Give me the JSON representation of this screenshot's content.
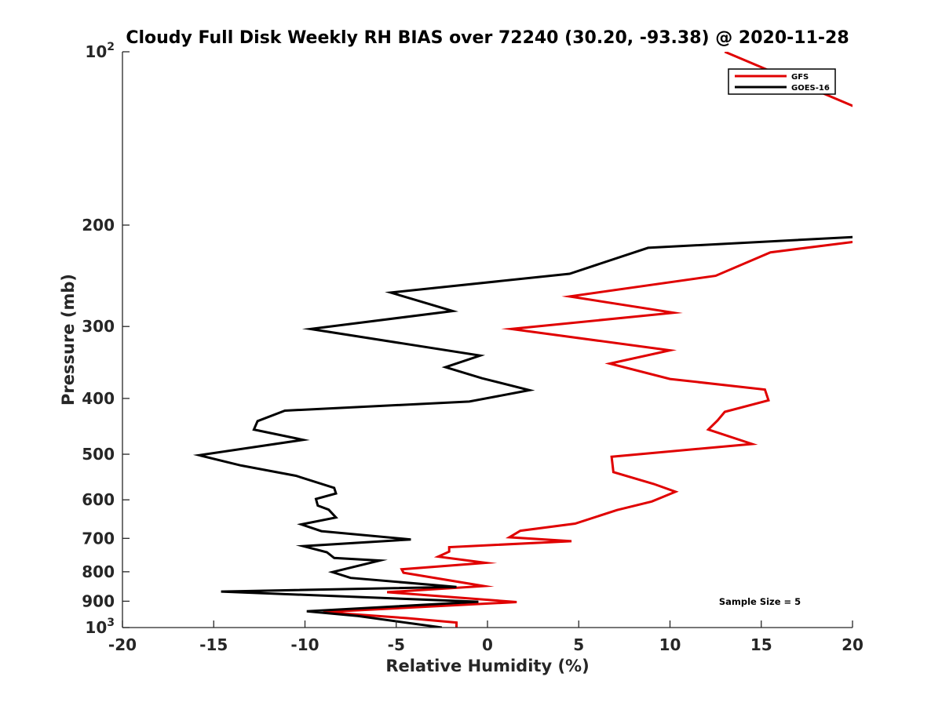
{
  "chart_data": {
    "type": "line",
    "title": "Cloudy Full Disk Weekly RH BIAS over 72240 (30.20, -93.38) @ 2020-11-28",
    "xlabel": "Relative Humidity (%)",
    "ylabel": "Pressure (mb)",
    "xlim": [
      -20,
      20
    ],
    "ylim": [
      100,
      1000
    ],
    "yscale": "log",
    "y_reversed": true,
    "xticks": [
      "-20",
      "-15",
      "-10",
      "-5",
      "0",
      "5",
      "10",
      "15",
      "20"
    ],
    "yticks": [
      {
        "value": 100,
        "base": "10",
        "exp": "2"
      },
      {
        "value": 200,
        "label": "200"
      },
      {
        "value": 300,
        "label": "300"
      },
      {
        "value": 400,
        "label": "400"
      },
      {
        "value": 500,
        "label": "500"
      },
      {
        "value": 600,
        "label": "600"
      },
      {
        "value": 700,
        "label": "700"
      },
      {
        "value": 800,
        "label": "800"
      },
      {
        "value": 900,
        "label": "900"
      },
      {
        "value": 1000,
        "base": "10",
        "exp": "3"
      }
    ],
    "legend": {
      "position": "top-right"
    },
    "annotation": "Sample Size = 5",
    "series": [
      {
        "name": "GFS",
        "color": "#e00000",
        "points": [
          [
            13.0,
            100
          ],
          [
            21.0,
            128
          ],
          [
            21.0,
            212
          ],
          [
            15.5,
            223
          ],
          [
            12.5,
            245
          ],
          [
            4.5,
            266
          ],
          [
            10.2,
            284
          ],
          [
            1.3,
            303
          ],
          [
            10.0,
            330
          ],
          [
            6.7,
            348
          ],
          [
            10.0,
            370
          ],
          [
            15.2,
            386
          ],
          [
            15.4,
            403
          ],
          [
            13.0,
            422
          ],
          [
            12.6,
            437
          ],
          [
            12.1,
            453
          ],
          [
            14.5,
            480
          ],
          [
            6.8,
            505
          ],
          [
            6.9,
            537
          ],
          [
            9.1,
            563
          ],
          [
            10.3,
            581
          ],
          [
            9.0,
            604
          ],
          [
            7.1,
            625
          ],
          [
            4.8,
            660
          ],
          [
            1.8,
            679
          ],
          [
            1.2,
            697
          ],
          [
            4.6,
            708
          ],
          [
            -2.1,
            725
          ],
          [
            -2.1,
            738
          ],
          [
            -2.7,
            753
          ],
          [
            -0.1,
            772
          ],
          [
            -4.7,
            792
          ],
          [
            -4.6,
            803
          ],
          [
            -0.2,
            847
          ],
          [
            -5.5,
            868
          ],
          [
            1.6,
            903
          ],
          [
            -9.0,
            940
          ],
          [
            -4.4,
            963
          ],
          [
            -1.7,
            980
          ],
          [
            -1.7,
            1000
          ]
        ]
      },
      {
        "name": "GOES-16",
        "color": "#000000",
        "points": [
          [
            21.0,
            209
          ],
          [
            8.8,
            219
          ],
          [
            4.5,
            243
          ],
          [
            -5.3,
            262
          ],
          [
            -1.9,
            282
          ],
          [
            -9.7,
            303
          ],
          [
            -0.4,
            337
          ],
          [
            -2.3,
            353
          ],
          [
            -0.3,
            369
          ],
          [
            2.3,
            387
          ],
          [
            -1.0,
            405
          ],
          [
            -11.1,
            420
          ],
          [
            -12.6,
            438
          ],
          [
            -12.8,
            453
          ],
          [
            -10.1,
            472
          ],
          [
            -15.8,
            502
          ],
          [
            -13.5,
            523
          ],
          [
            -10.5,
            545
          ],
          [
            -8.4,
            572
          ],
          [
            -8.3,
            585
          ],
          [
            -9.4,
            598
          ],
          [
            -9.3,
            614
          ],
          [
            -8.7,
            624
          ],
          [
            -8.3,
            644
          ],
          [
            -10.2,
            662
          ],
          [
            -9.1,
            680
          ],
          [
            -4.2,
            703
          ],
          [
            -10.1,
            722
          ],
          [
            -8.8,
            740
          ],
          [
            -8.4,
            757
          ],
          [
            -5.9,
            765
          ],
          [
            -8.5,
            801
          ],
          [
            -7.5,
            820
          ],
          [
            -1.7,
            850
          ],
          [
            -14.6,
            866
          ],
          [
            -0.5,
            902
          ],
          [
            -9.9,
            937
          ],
          [
            -7.1,
            955
          ],
          [
            -2.5,
            1000
          ]
        ]
      }
    ]
  }
}
